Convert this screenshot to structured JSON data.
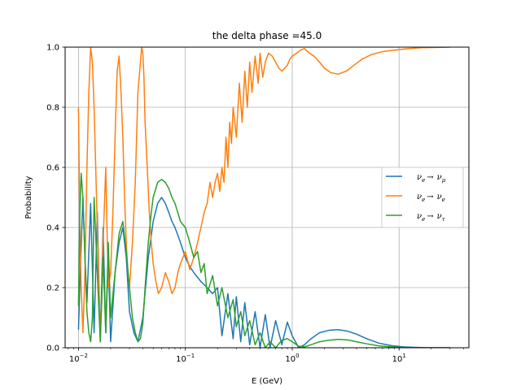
{
  "chart_data": {
    "type": "line",
    "title": "the delta phase =45.0",
    "xlabel": "E (GeV)",
    "ylabel": "Probability",
    "xscale": "log",
    "xlim": [
      0.0075,
      45
    ],
    "ylim": [
      0,
      1
    ],
    "grid": true,
    "legend_position": "center-right",
    "x_ticks": [
      {
        "value": 0.01,
        "base": "10",
        "exp": "−2"
      },
      {
        "value": 0.1,
        "base": "10",
        "exp": "−1"
      },
      {
        "value": 1,
        "base": "10",
        "exp": "0"
      },
      {
        "value": 10,
        "base": "10",
        "exp": "1"
      }
    ],
    "y_ticks": [
      {
        "value": 0.0,
        "label": "0.0"
      },
      {
        "value": 0.2,
        "label": "0.2"
      },
      {
        "value": 0.4,
        "label": "0.4"
      },
      {
        "value": 0.6,
        "label": "0.6"
      },
      {
        "value": 0.8,
        "label": "0.8"
      },
      {
        "value": 1.0,
        "label": "1.0"
      }
    ],
    "series": [
      {
        "name": "νe → νμ",
        "name_main": "ν",
        "name_sub": "e",
        "name_arrow": "→",
        "name_main2": "ν",
        "name_sub2": "μ",
        "color": "#1f77b4",
        "x": [
          0.01,
          0.0105,
          0.011,
          0.0115,
          0.012,
          0.013,
          0.014,
          0.015,
          0.016,
          0.017,
          0.018,
          0.019,
          0.02,
          0.022,
          0.024,
          0.026,
          0.028,
          0.03,
          0.033,
          0.036,
          0.04,
          0.045,
          0.05,
          0.055,
          0.06,
          0.065,
          0.07,
          0.075,
          0.08,
          0.09,
          0.1,
          0.11,
          0.12,
          0.14,
          0.16,
          0.18,
          0.2,
          0.22,
          0.25,
          0.28,
          0.3,
          0.33,
          0.36,
          0.4,
          0.45,
          0.5,
          0.56,
          0.62,
          0.7,
          0.8,
          0.9,
          1.0,
          1.15,
          1.3,
          1.5,
          1.8,
          2.2,
          2.7,
          3.3,
          4.0,
          5.0,
          6.5,
          8.5,
          11,
          15,
          20,
          30
        ],
        "y": [
          0.06,
          0.3,
          0.5,
          0.3,
          0.15,
          0.48,
          0.05,
          0.45,
          0.02,
          0.4,
          0.05,
          0.3,
          0.02,
          0.25,
          0.35,
          0.4,
          0.3,
          0.12,
          0.05,
          0.02,
          0.1,
          0.3,
          0.42,
          0.48,
          0.5,
          0.48,
          0.45,
          0.42,
          0.4,
          0.35,
          0.3,
          0.27,
          0.25,
          0.22,
          0.2,
          0.18,
          0.2,
          0.04,
          0.18,
          0.03,
          0.17,
          0.02,
          0.15,
          0.01,
          0.12,
          0.0,
          0.11,
          0.0,
          0.09,
          0.01,
          0.085,
          0.04,
          0.0,
          0.01,
          0.03,
          0.05,
          0.058,
          0.06,
          0.055,
          0.045,
          0.03,
          0.015,
          0.007,
          0.003,
          0.001,
          0.0,
          0.0
        ]
      },
      {
        "name": "νe → νe",
        "name_main": "ν",
        "name_sub": "e",
        "name_arrow": "→",
        "name_main2": "ν",
        "name_sub2": "e",
        "color": "#ff7f0e",
        "x": [
          0.01,
          0.0103,
          0.0106,
          0.011,
          0.0115,
          0.012,
          0.0125,
          0.013,
          0.0135,
          0.014,
          0.0145,
          0.015,
          0.0155,
          0.016,
          0.0165,
          0.017,
          0.018,
          0.019,
          0.02,
          0.021,
          0.022,
          0.023,
          0.024,
          0.025,
          0.026,
          0.027,
          0.028,
          0.029,
          0.03,
          0.032,
          0.034,
          0.036,
          0.038,
          0.039,
          0.04,
          0.041,
          0.042,
          0.044,
          0.046,
          0.048,
          0.05,
          0.053,
          0.056,
          0.06,
          0.065,
          0.07,
          0.075,
          0.08,
          0.085,
          0.09,
          0.1,
          0.11,
          0.12,
          0.13,
          0.14,
          0.15,
          0.16,
          0.17,
          0.18,
          0.19,
          0.2,
          0.21,
          0.22,
          0.23,
          0.24,
          0.25,
          0.26,
          0.27,
          0.28,
          0.3,
          0.32,
          0.34,
          0.36,
          0.38,
          0.4,
          0.42,
          0.45,
          0.48,
          0.5,
          0.53,
          0.56,
          0.6,
          0.65,
          0.7,
          0.75,
          0.8,
          0.85,
          0.9,
          0.95,
          1.0,
          1.1,
          1.2,
          1.3,
          1.45,
          1.6,
          1.8,
          2.0,
          2.3,
          2.7,
          3.2,
          3.8,
          4.5,
          5.5,
          7.0,
          9.0,
          12,
          16,
          22,
          30
        ],
        "y": [
          0.8,
          0.4,
          0.2,
          0.05,
          0.25,
          0.6,
          0.85,
          1.0,
          0.95,
          0.8,
          0.6,
          0.4,
          0.2,
          0.05,
          0.15,
          0.35,
          0.6,
          0.2,
          0.25,
          0.45,
          0.7,
          0.92,
          0.97,
          0.85,
          0.7,
          0.5,
          0.35,
          0.25,
          0.2,
          0.35,
          0.55,
          0.85,
          0.95,
          1.0,
          0.98,
          0.9,
          0.75,
          0.6,
          0.45,
          0.35,
          0.28,
          0.22,
          0.18,
          0.2,
          0.25,
          0.22,
          0.18,
          0.2,
          0.25,
          0.28,
          0.32,
          0.26,
          0.3,
          0.35,
          0.4,
          0.45,
          0.48,
          0.55,
          0.5,
          0.55,
          0.58,
          0.52,
          0.6,
          0.55,
          0.7,
          0.6,
          0.75,
          0.68,
          0.8,
          0.7,
          0.88,
          0.75,
          0.92,
          0.8,
          0.95,
          0.85,
          0.97,
          0.88,
          0.98,
          0.9,
          0.95,
          0.98,
          0.97,
          0.95,
          0.93,
          0.92,
          0.93,
          0.94,
          0.96,
          0.97,
          0.98,
          0.99,
          0.995,
          0.98,
          0.97,
          0.95,
          0.93,
          0.915,
          0.91,
          0.92,
          0.94,
          0.96,
          0.975,
          0.985,
          0.99,
          0.995,
          0.998,
          0.999,
          1.0
        ]
      },
      {
        "name": "νe → ντ",
        "name_main": "ν",
        "name_sub": "e",
        "name_arrow": "→",
        "name_main2": "ν",
        "name_sub2": "τ",
        "color": "#2ca02c",
        "x": [
          0.01,
          0.0103,
          0.0106,
          0.011,
          0.0115,
          0.012,
          0.0125,
          0.013,
          0.0135,
          0.014,
          0.015,
          0.016,
          0.017,
          0.018,
          0.019,
          0.02,
          0.022,
          0.024,
          0.026,
          0.028,
          0.03,
          0.032,
          0.034,
          0.036,
          0.038,
          0.04,
          0.042,
          0.045,
          0.048,
          0.05,
          0.055,
          0.06,
          0.065,
          0.07,
          0.075,
          0.08,
          0.085,
          0.09,
          0.1,
          0.11,
          0.12,
          0.13,
          0.14,
          0.15,
          0.16,
          0.18,
          0.2,
          0.22,
          0.25,
          0.28,
          0.3,
          0.33,
          0.36,
          0.4,
          0.45,
          0.5,
          0.56,
          0.62,
          0.7,
          0.8,
          0.9,
          1.0,
          1.15,
          1.3,
          1.5,
          1.8,
          2.2,
          2.7,
          3.3,
          4.0,
          5.0,
          6.5,
          8.5,
          11,
          15,
          20,
          30
        ],
        "y": [
          0.14,
          0.45,
          0.58,
          0.5,
          0.3,
          0.12,
          0.05,
          0.02,
          0.1,
          0.5,
          0.25,
          0.02,
          0.3,
          0.05,
          0.35,
          0.1,
          0.25,
          0.38,
          0.42,
          0.32,
          0.2,
          0.1,
          0.05,
          0.02,
          0.03,
          0.08,
          0.2,
          0.35,
          0.45,
          0.5,
          0.55,
          0.56,
          0.55,
          0.53,
          0.5,
          0.48,
          0.45,
          0.42,
          0.4,
          0.35,
          0.3,
          0.32,
          0.25,
          0.28,
          0.18,
          0.24,
          0.14,
          0.2,
          0.1,
          0.16,
          0.07,
          0.12,
          0.04,
          0.09,
          0.01,
          0.05,
          0.0,
          0.02,
          0.0,
          0.025,
          0.03,
          0.02,
          0.005,
          0.003,
          0.01,
          0.02,
          0.025,
          0.028,
          0.026,
          0.02,
          0.013,
          0.006,
          0.003,
          0.001,
          0.0,
          0.0,
          0.0
        ]
      }
    ]
  }
}
